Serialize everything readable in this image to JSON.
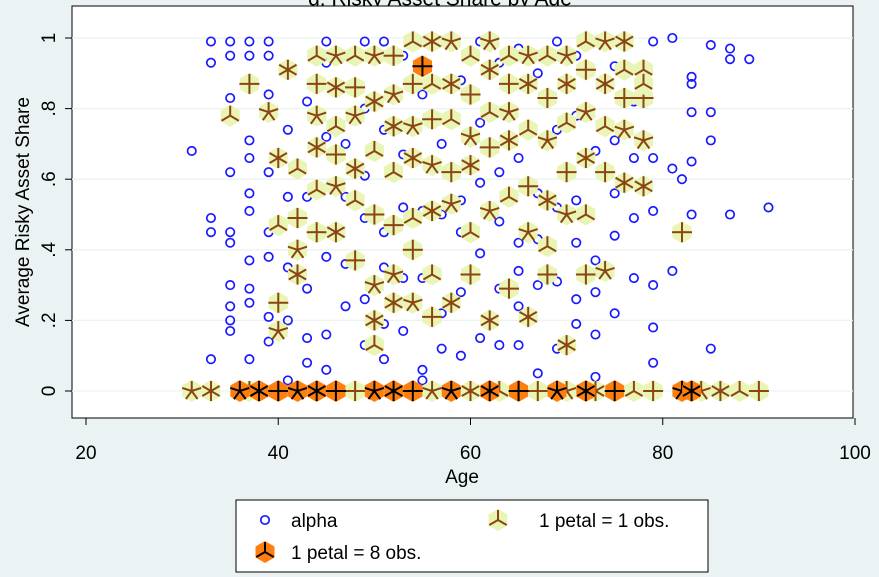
{
  "chart_data": {
    "type": "scatter",
    "title": "g: Risky Asset Share by Age",
    "xlabel": "Age",
    "ylabel": "Average Risky Asset Share",
    "xlim": [
      20,
      100
    ],
    "ylim": [
      0,
      1
    ],
    "x_ticks": [
      "20",
      "40",
      "60",
      "80",
      "100"
    ],
    "y_ticks": [
      "0",
      ".2",
      ".4",
      ".6",
      ".8",
      "1"
    ],
    "grid": "y",
    "legend_position": "bottom",
    "legend": [
      {
        "label": "alpha",
        "marker": "hollow circle",
        "color": "#1a1aff"
      },
      {
        "label": "1 petal = 1 obs.",
        "marker": "sunflower light",
        "color": "#e9f5b4"
      },
      {
        "label": "1 petal = 8 obs.",
        "marker": "sunflower dark",
        "color": "#ff7f0e"
      }
    ],
    "series": [
      {
        "name": "alpha",
        "color": "#1a1aff",
        "points": [
          [
            31,
            0.68
          ],
          [
            33,
            0.99
          ],
          [
            33,
            0.93
          ],
          [
            33,
            0.49
          ],
          [
            33,
            0.45
          ],
          [
            33,
            0.09
          ],
          [
            35,
            0.99
          ],
          [
            35,
            0.95
          ],
          [
            35,
            0.83
          ],
          [
            35,
            0.62
          ],
          [
            35,
            0.45
          ],
          [
            35,
            0.42
          ],
          [
            35,
            0.3
          ],
          [
            35,
            0.24
          ],
          [
            35,
            0.2
          ],
          [
            35,
            0.17
          ],
          [
            37,
            0.99
          ],
          [
            37,
            0.95
          ],
          [
            37,
            0.71
          ],
          [
            37,
            0.66
          ],
          [
            37,
            0.56
          ],
          [
            37,
            0.51
          ],
          [
            37,
            0.37
          ],
          [
            37,
            0.29
          ],
          [
            37,
            0.25
          ],
          [
            37,
            0.09
          ],
          [
            39,
            0.99
          ],
          [
            39,
            0.95
          ],
          [
            39,
            0.84
          ],
          [
            39,
            0.62
          ],
          [
            39,
            0.45
          ],
          [
            39,
            0.38
          ],
          [
            39,
            0.21
          ],
          [
            39,
            0.14
          ],
          [
            41,
            0.74
          ],
          [
            41,
            0.55
          ],
          [
            41,
            0.35
          ],
          [
            41,
            0.2
          ],
          [
            41,
            0.03
          ],
          [
            43,
            0.82
          ],
          [
            43,
            0.55
          ],
          [
            43,
            0.29
          ],
          [
            43,
            0.15
          ],
          [
            43,
            0.08
          ],
          [
            45,
            0.99
          ],
          [
            45,
            0.93
          ],
          [
            45,
            0.72
          ],
          [
            45,
            0.38
          ],
          [
            45,
            0.16
          ],
          [
            45,
            0.06
          ],
          [
            47,
            0.7
          ],
          [
            47,
            0.55
          ],
          [
            47,
            0.36
          ],
          [
            47,
            0.24
          ],
          [
            49,
            0.99
          ],
          [
            49,
            0.8
          ],
          [
            49,
            0.61
          ],
          [
            49,
            0.49
          ],
          [
            49,
            0.26
          ],
          [
            49,
            0.13
          ],
          [
            51,
            0.99
          ],
          [
            51,
            0.74
          ],
          [
            51,
            0.45
          ],
          [
            51,
            0.35
          ],
          [
            51,
            0.19
          ],
          [
            51,
            0.09
          ],
          [
            53,
            0.95
          ],
          [
            53,
            0.67
          ],
          [
            53,
            0.52
          ],
          [
            53,
            0.32
          ],
          [
            53,
            0.17
          ],
          [
            55,
            0.99
          ],
          [
            55,
            0.84
          ],
          [
            55,
            0.51
          ],
          [
            55,
            0.32
          ],
          [
            55,
            0.06
          ],
          [
            55,
            0.03
          ],
          [
            57,
            0.99
          ],
          [
            57,
            0.7
          ],
          [
            57,
            0.5
          ],
          [
            57,
            0.22
          ],
          [
            57,
            0.12
          ],
          [
            59,
            0.88
          ],
          [
            59,
            0.54
          ],
          [
            59,
            0.45
          ],
          [
            59,
            0.28
          ],
          [
            59,
            0.1
          ],
          [
            61,
            0.99
          ],
          [
            61,
            0.76
          ],
          [
            61,
            0.59
          ],
          [
            61,
            0.39
          ],
          [
            61,
            0.15
          ],
          [
            63,
            0.93
          ],
          [
            63,
            0.62
          ],
          [
            63,
            0.48
          ],
          [
            63,
            0.29
          ],
          [
            63,
            0.13
          ],
          [
            65,
            0.97
          ],
          [
            65,
            0.66
          ],
          [
            65,
            0.42
          ],
          [
            65,
            0.34
          ],
          [
            65,
            0.24
          ],
          [
            65,
            0.13
          ],
          [
            67,
            0.9
          ],
          [
            67,
            0.56
          ],
          [
            67,
            0.43
          ],
          [
            67,
            0.3
          ],
          [
            67,
            0.05
          ],
          [
            69,
            0.99
          ],
          [
            69,
            0.74
          ],
          [
            69,
            0.52
          ],
          [
            69,
            0.31
          ],
          [
            69,
            0.12
          ],
          [
            71,
            0.95
          ],
          [
            71,
            0.78
          ],
          [
            71,
            0.54
          ],
          [
            71,
            0.42
          ],
          [
            71,
            0.26
          ],
          [
            71,
            0.19
          ],
          [
            73,
            0.99
          ],
          [
            73,
            0.68
          ],
          [
            73,
            0.37
          ],
          [
            73,
            0.28
          ],
          [
            73,
            0.16
          ],
          [
            73,
            0.04
          ],
          [
            75,
            0.92
          ],
          [
            75,
            0.71
          ],
          [
            75,
            0.56
          ],
          [
            75,
            0.44
          ],
          [
            75,
            0.22
          ],
          [
            77,
            0.82
          ],
          [
            77,
            0.66
          ],
          [
            77,
            0.49
          ],
          [
            77,
            0.32
          ],
          [
            79,
            0.99
          ],
          [
            79,
            0.66
          ],
          [
            79,
            0.51
          ],
          [
            79,
            0.3
          ],
          [
            79,
            0.18
          ],
          [
            79,
            0.08
          ],
          [
            81,
            1.0
          ],
          [
            81,
            0.63
          ],
          [
            81,
            0.34
          ],
          [
            82,
            0.6
          ],
          [
            83,
            0.89
          ],
          [
            83,
            0.87
          ],
          [
            83,
            0.79
          ],
          [
            83,
            0.65
          ],
          [
            83,
            0.5
          ],
          [
            85,
            0.79
          ],
          [
            85,
            0.71
          ],
          [
            85,
            0.12
          ],
          [
            85,
            0.98
          ],
          [
            87,
            0.97
          ],
          [
            87,
            0.94
          ],
          [
            87,
            0.5
          ],
          [
            89,
            0.94
          ],
          [
            91,
            0.52
          ]
        ]
      },
      {
        "name": "1 petal = 1 obs.",
        "color": "#e9f5b4",
        "points": [
          [
            35,
            0.78
          ],
          [
            37,
            0.87
          ],
          [
            39,
            0.79
          ],
          [
            40,
            0.66
          ],
          [
            40,
            0.47
          ],
          [
            40,
            0.25
          ],
          [
            40,
            0.17
          ],
          [
            41,
            0.91
          ],
          [
            42,
            0.63
          ],
          [
            42,
            0.49
          ],
          [
            42,
            0.4
          ],
          [
            42,
            0.33
          ],
          [
            44,
            0.95
          ],
          [
            44,
            0.87
          ],
          [
            44,
            0.78
          ],
          [
            44,
            0.69
          ],
          [
            44,
            0.57
          ],
          [
            44,
            0.45
          ],
          [
            46,
            0.95
          ],
          [
            46,
            0.86
          ],
          [
            46,
            0.75
          ],
          [
            46,
            0.67
          ],
          [
            46,
            0.58
          ],
          [
            46,
            0.45
          ],
          [
            48,
            0.95
          ],
          [
            48,
            0.86
          ],
          [
            48,
            0.78
          ],
          [
            48,
            0.63
          ],
          [
            48,
            0.54
          ],
          [
            48,
            0.37
          ],
          [
            50,
            0.95
          ],
          [
            50,
            0.82
          ],
          [
            50,
            0.68
          ],
          [
            50,
            0.5
          ],
          [
            50,
            0.3
          ],
          [
            50,
            0.2
          ],
          [
            50,
            0.13
          ],
          [
            52,
            0.95
          ],
          [
            52,
            0.84
          ],
          [
            52,
            0.75
          ],
          [
            52,
            0.62
          ],
          [
            52,
            0.47
          ],
          [
            52,
            0.33
          ],
          [
            52,
            0.25
          ],
          [
            54,
            0.99
          ],
          [
            54,
            0.87
          ],
          [
            54,
            0.75
          ],
          [
            54,
            0.66
          ],
          [
            54,
            0.49
          ],
          [
            54,
            0.4
          ],
          [
            54,
            0.25
          ],
          [
            56,
            0.99
          ],
          [
            56,
            0.87
          ],
          [
            56,
            0.77
          ],
          [
            56,
            0.64
          ],
          [
            56,
            0.51
          ],
          [
            56,
            0.33
          ],
          [
            56,
            0.21
          ],
          [
            58,
            0.99
          ],
          [
            58,
            0.87
          ],
          [
            58,
            0.77
          ],
          [
            58,
            0.62
          ],
          [
            58,
            0.53
          ],
          [
            58,
            0.25
          ],
          [
            60,
            0.95
          ],
          [
            60,
            0.84
          ],
          [
            60,
            0.72
          ],
          [
            60,
            0.64
          ],
          [
            60,
            0.45
          ],
          [
            60,
            0.33
          ],
          [
            62,
            0.99
          ],
          [
            62,
            0.91
          ],
          [
            62,
            0.79
          ],
          [
            62,
            0.69
          ],
          [
            62,
            0.51
          ],
          [
            62,
            0.2
          ],
          [
            64,
            0.95
          ],
          [
            64,
            0.87
          ],
          [
            64,
            0.79
          ],
          [
            64,
            0.71
          ],
          [
            64,
            0.55
          ],
          [
            64,
            0.29
          ],
          [
            66,
            0.95
          ],
          [
            66,
            0.87
          ],
          [
            66,
            0.74
          ],
          [
            66,
            0.58
          ],
          [
            66,
            0.45
          ],
          [
            66,
            0.21
          ],
          [
            68,
            0.95
          ],
          [
            68,
            0.83
          ],
          [
            68,
            0.71
          ],
          [
            68,
            0.54
          ],
          [
            68,
            0.41
          ],
          [
            68,
            0.33
          ],
          [
            70,
            0.95
          ],
          [
            70,
            0.87
          ],
          [
            70,
            0.76
          ],
          [
            70,
            0.62
          ],
          [
            70,
            0.5
          ],
          [
            70,
            0.13
          ],
          [
            72,
            0.99
          ],
          [
            72,
            0.91
          ],
          [
            72,
            0.79
          ],
          [
            72,
            0.66
          ],
          [
            72,
            0.5
          ],
          [
            72,
            0.33
          ],
          [
            74,
            0.99
          ],
          [
            74,
            0.87
          ],
          [
            74,
            0.75
          ],
          [
            74,
            0.62
          ],
          [
            74,
            0.34
          ],
          [
            76,
            0.99
          ],
          [
            76,
            0.91
          ],
          [
            76,
            0.83
          ],
          [
            76,
            0.74
          ],
          [
            76,
            0.59
          ],
          [
            78,
            0.91
          ],
          [
            78,
            0.83
          ],
          [
            78,
            0.71
          ],
          [
            78,
            0.58
          ],
          [
            78,
            0.87
          ],
          [
            82,
            0.45
          ],
          [
            31,
            0.0
          ],
          [
            33,
            0.0
          ],
          [
            37,
            0.0
          ],
          [
            48,
            0.0
          ],
          [
            56,
            0.0
          ],
          [
            60,
            0.0
          ],
          [
            63,
            0.0
          ],
          [
            67,
            0.0
          ],
          [
            70,
            0.0
          ],
          [
            73,
            0.0
          ],
          [
            77,
            0.0
          ],
          [
            79,
            0.0
          ],
          [
            84,
            0.0
          ],
          [
            86,
            0.0
          ],
          [
            88,
            0.0
          ],
          [
            90,
            0.0
          ]
        ]
      },
      {
        "name": "1 petal = 8 obs.",
        "color": "#ff7f0e",
        "points": [
          [
            55,
            0.92
          ],
          [
            36,
            0.0
          ],
          [
            38,
            0.0
          ],
          [
            40,
            0.0
          ],
          [
            42,
            0.0
          ],
          [
            44,
            0.0
          ],
          [
            46,
            0.0
          ],
          [
            50,
            0.0
          ],
          [
            52,
            0.0
          ],
          [
            54,
            0.0
          ],
          [
            58,
            0.0
          ],
          [
            62,
            0.0
          ],
          [
            65,
            0.0
          ],
          [
            69,
            0.0
          ],
          [
            72,
            0.0
          ],
          [
            75,
            0.0
          ],
          [
            82,
            0.0
          ],
          [
            83,
            0.0
          ]
        ]
      }
    ]
  }
}
